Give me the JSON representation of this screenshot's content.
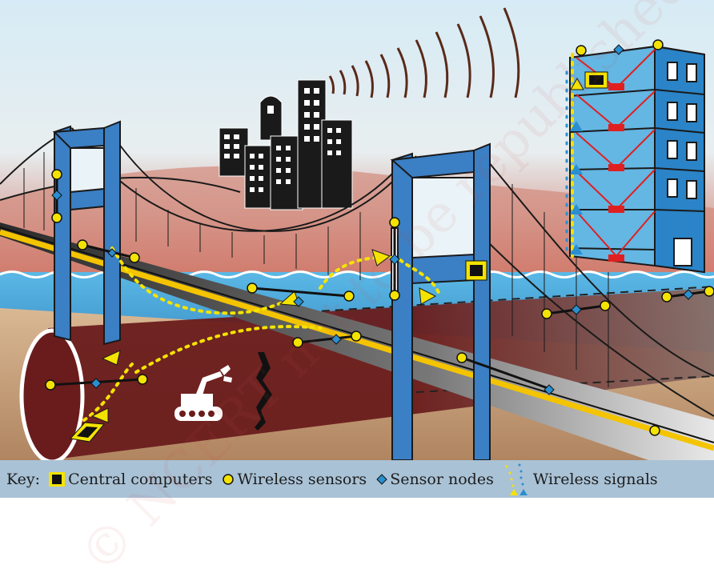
{
  "key": {
    "label": "Key:",
    "items": [
      {
        "icon": "central-computer-icon",
        "label": "Central computers"
      },
      {
        "icon": "wireless-sensor-icon",
        "label": "Wireless sensors"
      },
      {
        "icon": "sensor-node-icon",
        "label": "Sensor nodes"
      },
      {
        "icon": "wireless-signal-icon",
        "label": "Wireless signals"
      }
    ]
  },
  "watermark": "© NCERT not to be republished",
  "colors": {
    "sky": "#cfe6f2",
    "water": "#4aa9d9",
    "tower": "#3b7fc4",
    "road": "#2b2b2b",
    "sensor": "#f4e300",
    "node": "#2a8fd0",
    "computer_frame": "#f4e300",
    "tunnel": "#6b1e1e",
    "brace": "#e02020",
    "key_bar": "#a9c2d6"
  }
}
